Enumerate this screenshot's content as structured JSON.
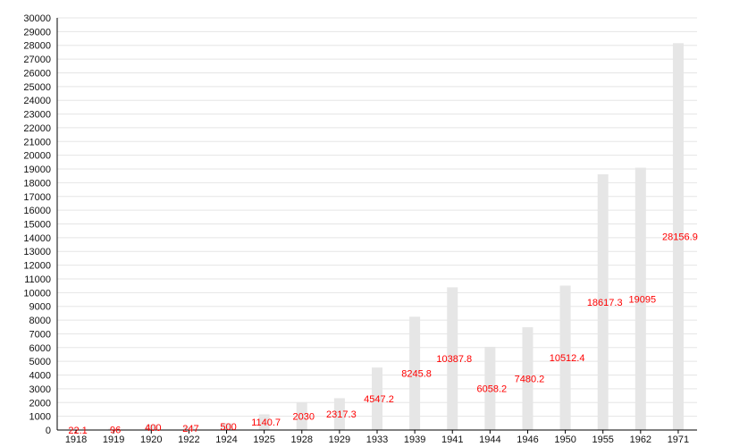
{
  "chart_data": {
    "type": "bar",
    "categories": [
      "1918",
      "1919",
      "1920",
      "1922",
      "1924",
      "1925",
      "1928",
      "1929",
      "1933",
      "1939",
      "1941",
      "1944",
      "1946",
      "1950",
      "1955",
      "1962",
      "1971"
    ],
    "values": [
      22.1,
      96,
      400,
      247,
      500,
      1140.7,
      2030,
      2317.3,
      4547.2,
      8245.8,
      10387.8,
      6058.2,
      7480.2,
      10512.4,
      18617.3,
      19095,
      28156.9
    ],
    "data_labels": [
      "22.1",
      "96",
      "400",
      "247",
      "500",
      "1140.7",
      "2030",
      "2317.3",
      "4547.2",
      "8245.8",
      "10387.8",
      "6058.2",
      "7480.2",
      "10512.4",
      "18617.3",
      "19095",
      "28156.9"
    ],
    "title": "",
    "xlabel": "",
    "ylabel": "",
    "ylim": [
      0,
      30000
    ],
    "ytick_step": 1000,
    "yticks": [
      "0",
      "1000",
      "2000",
      "3000",
      "4000",
      "5000",
      "6000",
      "7000",
      "8000",
      "9000",
      "10000",
      "11000",
      "12000",
      "13000",
      "14000",
      "15000",
      "16000",
      "17000",
      "18000",
      "19000",
      "20000",
      "21000",
      "22000",
      "23000",
      "24000",
      "25000",
      "26000",
      "27000",
      "28000",
      "29000",
      "30000"
    ],
    "grid": true,
    "legend": "none",
    "colors": {
      "bar": "#e6e6e6",
      "label": "#ff0000",
      "grid": "#e5e5e5",
      "axis": "#000000"
    }
  }
}
